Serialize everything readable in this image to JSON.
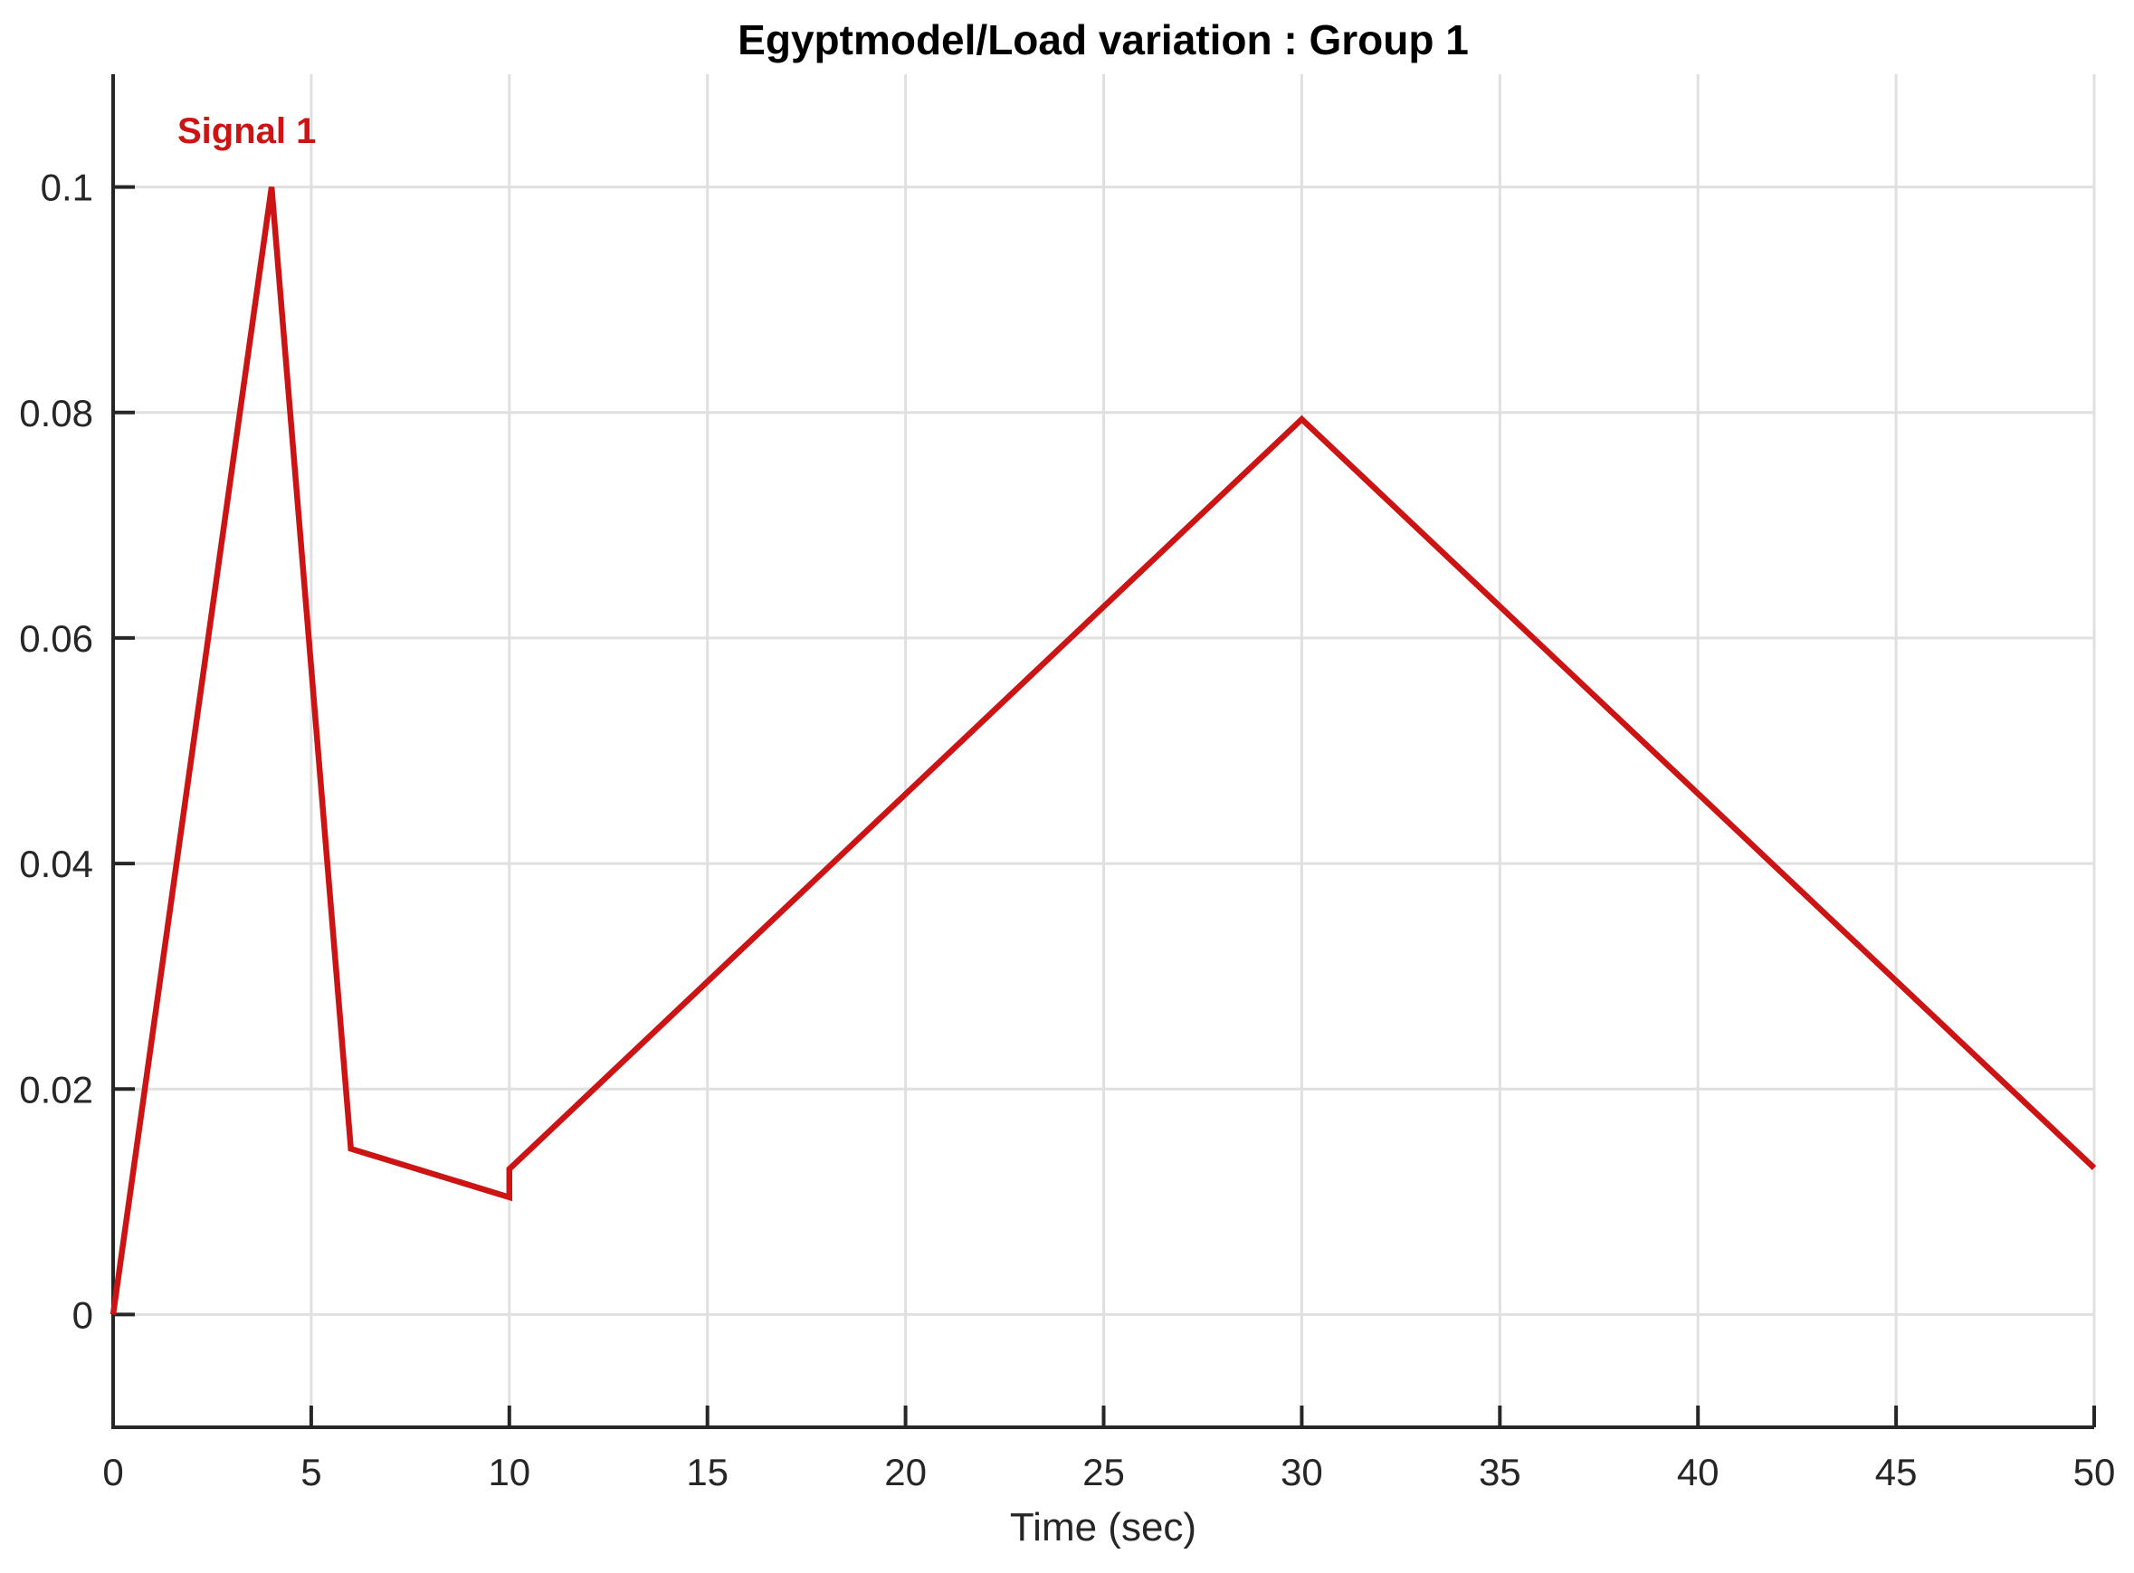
{
  "chart_data": {
    "type": "line",
    "title": "Egyptmodel/Load variation : Group 1",
    "xlabel": "Time (sec)",
    "ylabel": "",
    "signal_label": "Signal 1",
    "legend_position": "none",
    "grid": true,
    "xlim": [
      0,
      50
    ],
    "ylim": [
      -0.01,
      0.11
    ],
    "x_ticks": {
      "values": [
        0,
        5,
        10,
        15,
        20,
        25,
        30,
        35,
        40,
        45,
        50
      ],
      "labels": [
        "0",
        "5",
        "10",
        "15",
        "20",
        "25",
        "30",
        "35",
        "40",
        "45",
        "50"
      ]
    },
    "y_ticks": {
      "values": [
        0,
        0.02,
        0.04,
        0.06,
        0.08,
        0.1
      ],
      "labels": [
        "0",
        "0.02",
        "0.04",
        "0.06",
        "0.08",
        "0.1"
      ]
    },
    "series": [
      {
        "name": "Signal 1",
        "color": "#CD1414",
        "points": [
          [
            0,
            0
          ],
          [
            4,
            0.1
          ],
          [
            6,
            0.0147
          ],
          [
            10,
            0.0104
          ],
          [
            10,
            0.0129
          ],
          [
            30,
            0.0794
          ],
          [
            50,
            0.013
          ]
        ]
      }
    ],
    "colors": {
      "line": "#CD1414",
      "grid": "#E0E0E0",
      "axis": "#262626",
      "tick_label": "#262626",
      "title": "#000000",
      "background": "#FFFFFF"
    }
  }
}
